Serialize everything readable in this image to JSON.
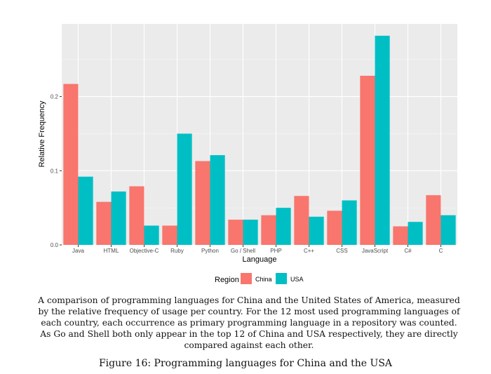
{
  "chart_data": {
    "type": "bar",
    "title": "",
    "xlabel": "Language",
    "ylabel": "Relative Frequency",
    "ylim": [
      0,
      0.298
    ],
    "yticks": [
      0.0,
      0.1,
      0.2
    ],
    "ytick_labels": [
      "0.0",
      "0.1",
      "0.2"
    ],
    "grid": true,
    "legend_position": "bottom",
    "legend_title": "Region",
    "categories": [
      "Java",
      "HTML",
      "Objective-C",
      "Ruby",
      "Python",
      "Go / Shell",
      "PHP",
      "C++",
      "CSS",
      "JavaScript",
      "C#",
      "C"
    ],
    "series": [
      {
        "name": "China",
        "color": "#F8766D",
        "values": [
          0.217,
          0.058,
          0.079,
          0.026,
          0.113,
          0.034,
          0.04,
          0.066,
          0.046,
          0.228,
          0.025,
          0.067
        ]
      },
      {
        "name": "USA",
        "color": "#00BFC4",
        "values": [
          0.092,
          0.072,
          0.026,
          0.15,
          0.121,
          0.034,
          0.05,
          0.038,
          0.06,
          0.282,
          0.031,
          0.04
        ]
      }
    ]
  },
  "caption": "A comparison of programming languages for China and the United States of America, measured by the relative frequency of usage per country. For the 12 most used programming languages of each country, each occurrence as primary programming language in a repository was counted. As Go and Shell both only appear in the top 12 of China and USA respectively, they are directly compared against each other.",
  "figure_title": "Figure 16: Programming languages for China and the USA"
}
